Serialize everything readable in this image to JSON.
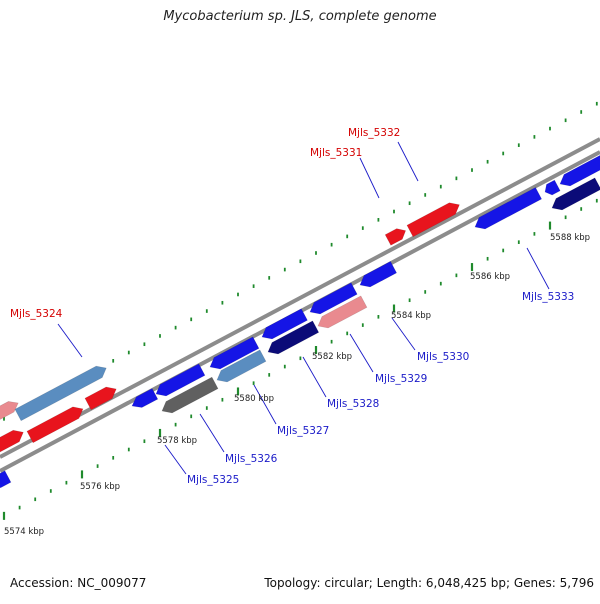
{
  "title": "Mycobacterium sp. JLS, complete genome",
  "footer": {
    "accession": "Accession: NC_009077",
    "summary": "Topology: circular; Length: 6,048,425 bp; Genes: 5,796"
  },
  "colors": {
    "forward_gene": "#e8141d",
    "forward_pseudo": "#e98a8f",
    "forward_other": "#5a8dc0",
    "reverse_gene": "#1515e6",
    "reverse_other": "#5a8dc0",
    "reverse_dark": "#0b0b78",
    "reverse_grey": "#606060",
    "backbone": "#8c8c8c",
    "ticks": "#1f8a2c",
    "label_forward": "#d40000",
    "label_reverse": "#1a1ac8",
    "scale_text": "#222222"
  },
  "scale_ticks": [
    "5574 kbp",
    "5576 kbp",
    "5578 kbp",
    "5580 kbp",
    "5582 kbp",
    "5584 kbp",
    "5586 kbp",
    "5588 kbp"
  ],
  "gene_labels": [
    "Mjls_5324",
    "Mjls_5325",
    "Mjls_5326",
    "Mjls_5327",
    "Mjls_5328",
    "Mjls_5329",
    "Mjls_5330",
    "Mjls_5331",
    "Mjls_5332",
    "Mjls_5333"
  ]
}
